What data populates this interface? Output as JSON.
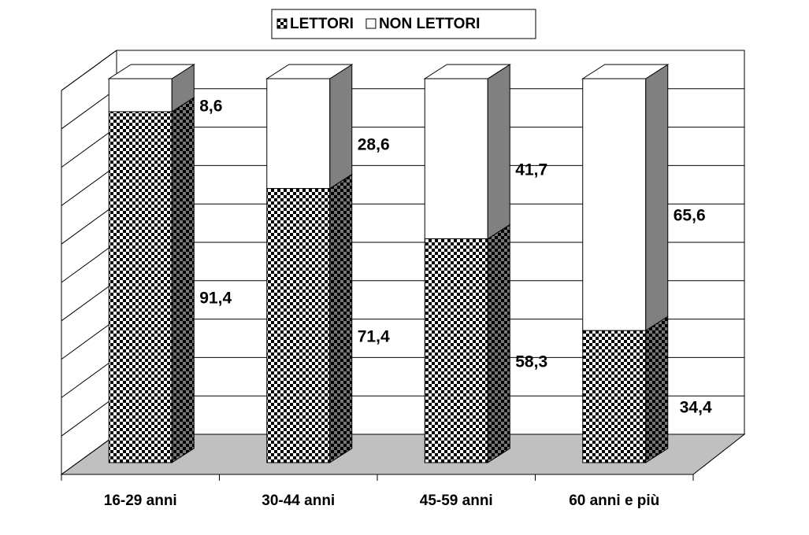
{
  "chart_data": {
    "type": "bar",
    "stacked": true,
    "categories": [
      "16-29 anni",
      "30-44 anni",
      "45-59 anni",
      "60 anni e più"
    ],
    "series": [
      {
        "name": "LETTORI",
        "color": "#000000",
        "pattern": "checker",
        "values": [
          91.4,
          71.4,
          58.3,
          34.4
        ],
        "value_labels": [
          "91,4",
          "71,4",
          "58,3",
          "34,4"
        ]
      },
      {
        "name": "NON LETTORI",
        "color": "#ffffff",
        "values": [
          8.6,
          28.6,
          41.7,
          65.6
        ],
        "value_labels": [
          "8,6",
          "28,6",
          "41,7",
          "65,6"
        ]
      }
    ],
    "ylim": [
      0,
      100
    ],
    "yticks": [
      0,
      10,
      20,
      30,
      40,
      50,
      60,
      70,
      80,
      90,
      100
    ],
    "grid": true,
    "legend": "top"
  }
}
